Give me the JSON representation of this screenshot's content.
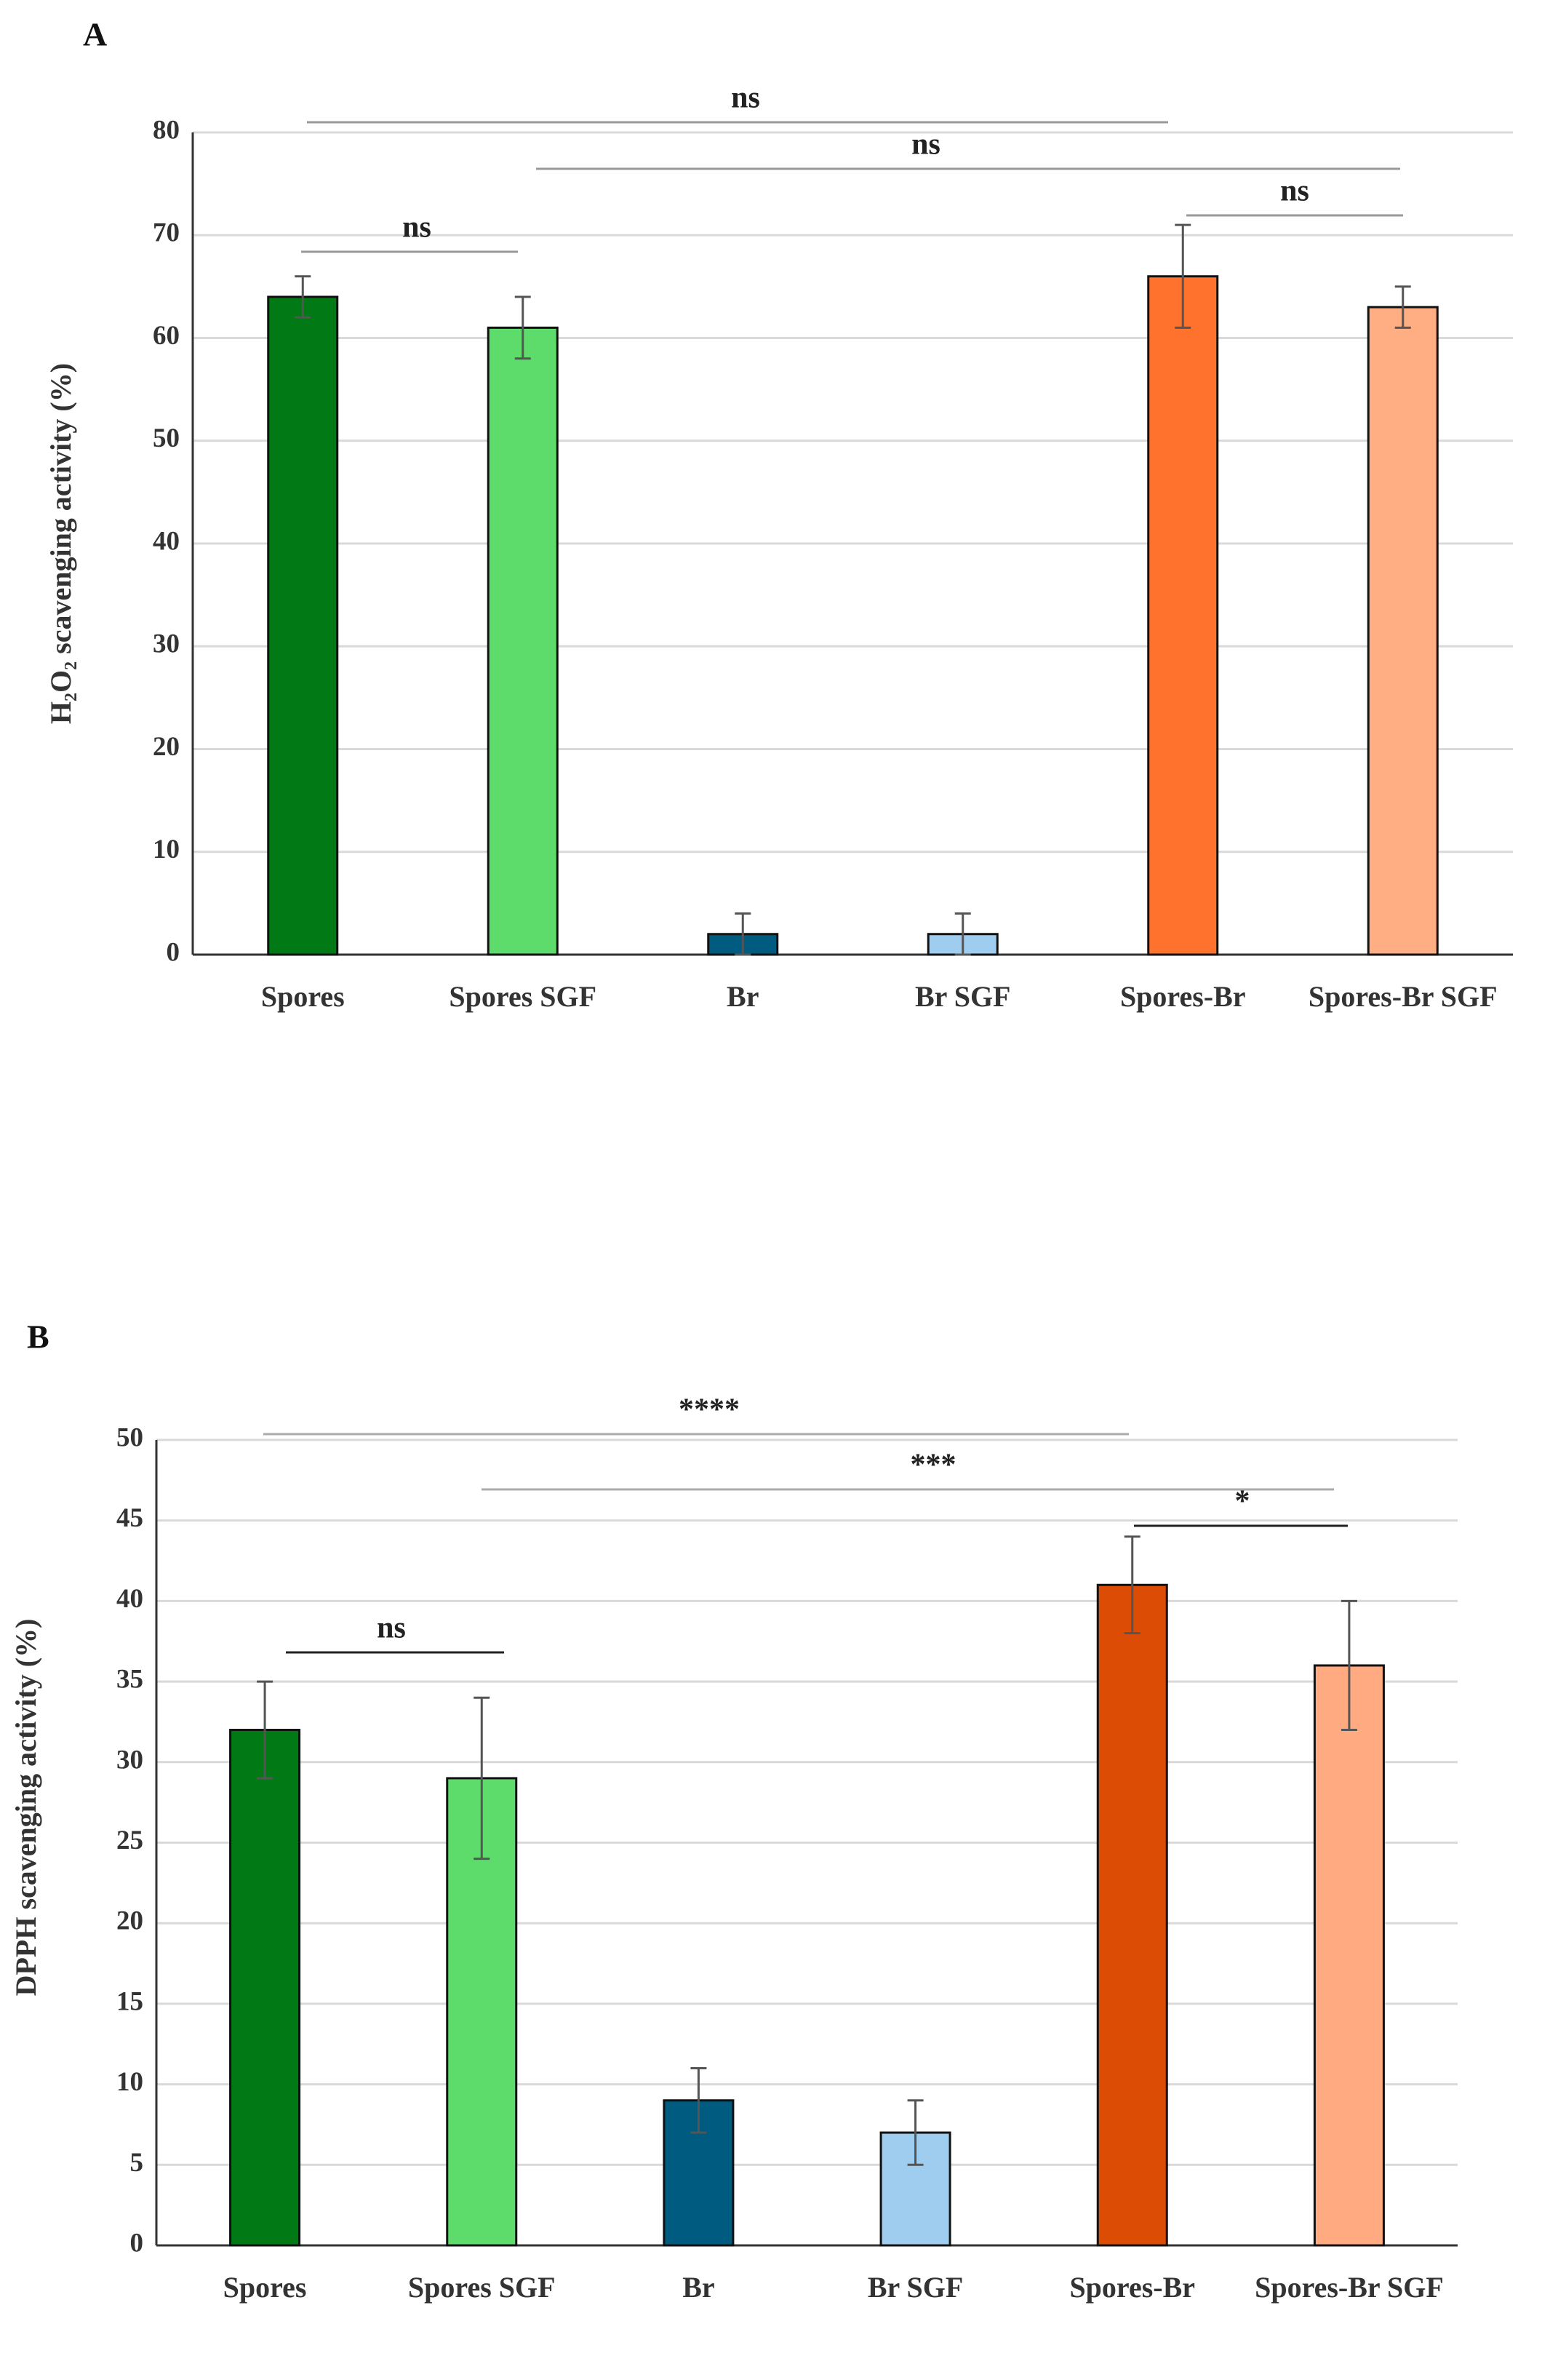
{
  "chart_data": [
    {
      "type": "bar",
      "panel": "A",
      "y_label": "H₂O₂ scavenging activity (%)",
      "categories": [
        "Spores",
        "Spores SGF",
        "Br",
        "Br SGF",
        "Spores-Br",
        "Spores-Br SGF"
      ],
      "values": [
        64,
        61,
        2,
        2,
        66,
        63
      ],
      "errors": [
        2,
        3,
        2,
        2,
        5,
        2
      ],
      "colors": [
        "#017a15",
        "#5ddb6b",
        "#005b80",
        "#9fcdef",
        "#ff722e",
        "#ffad82"
      ],
      "ylim": [
        0,
        80
      ],
      "yticks": [
        0,
        10,
        20,
        30,
        40,
        50,
        60,
        70,
        80
      ],
      "grid": true,
      "annotations": [
        "ns",
        "ns",
        "ns",
        "ns"
      ]
    },
    {
      "type": "bar",
      "panel": "B",
      "y_label": "DPPH scavenging activity (%)",
      "categories": [
        "Spores",
        "Spores SGF",
        "Br",
        "Br SGF",
        "Spores-Br",
        "Spores-Br SGF"
      ],
      "values": [
        32,
        29,
        9,
        7,
        41,
        36
      ],
      "errors": [
        3,
        5,
        2,
        2,
        3,
        4
      ],
      "colors": [
        "#017a15",
        "#5ddb6b",
        "#005b80",
        "#9fcdef",
        "#dd4c05",
        "#ffaa80"
      ],
      "ylim": [
        0,
        50
      ],
      "yticks": [
        0,
        5,
        10,
        15,
        20,
        25,
        30,
        35,
        40,
        45,
        50
      ],
      "grid": true,
      "annotations": [
        "****",
        "***",
        "*",
        "ns"
      ]
    }
  ]
}
